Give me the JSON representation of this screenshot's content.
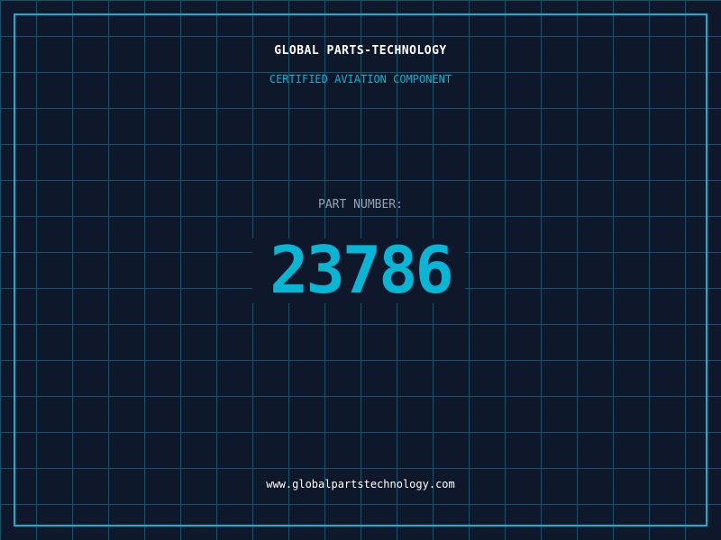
{
  "header": {
    "title": "GLOBAL PARTS-TECHNOLOGY",
    "subtitle": "CERTIFIED AVIATION COMPONENT"
  },
  "part": {
    "label": "PART NUMBER:",
    "number": "23786"
  },
  "footer": {
    "url": "www.globalpartstechnology.com"
  },
  "colors": {
    "background": "#0f172a",
    "accent": "#06b6d4",
    "grid": "#155e75",
    "label": "#94a3b8"
  }
}
